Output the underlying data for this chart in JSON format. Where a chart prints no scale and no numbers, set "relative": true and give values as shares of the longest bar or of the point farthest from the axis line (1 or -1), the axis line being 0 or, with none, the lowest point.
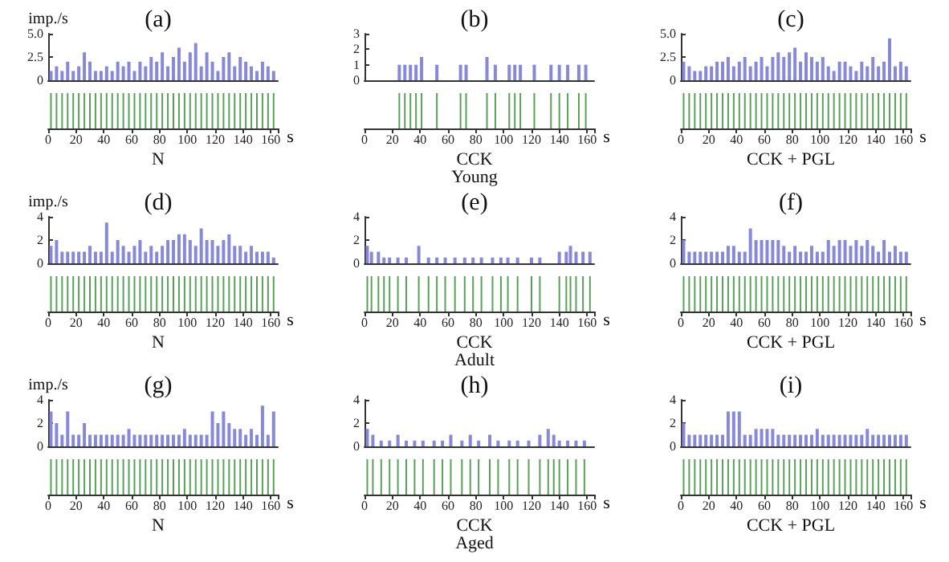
{
  "chart_data": [
    {
      "type": "bar",
      "title": "(a)",
      "ylabel": "imp./s",
      "color": "#8888d8",
      "xlim": [
        0,
        165
      ],
      "ylim": [
        0,
        5
      ],
      "yticks": [
        0,
        2.5,
        {
          "value": 5,
          "label": "5.0"
        }
      ],
      "tick_labels": "y",
      "x": [
        2,
        6,
        10,
        14,
        18,
        22,
        26,
        30,
        34,
        38,
        42,
        46,
        50,
        54,
        58,
        62,
        66,
        70,
        74,
        78,
        82,
        86,
        90,
        94,
        98,
        102,
        106,
        110,
        114,
        118,
        122,
        126,
        130,
        134,
        138,
        142,
        146,
        150,
        154,
        158,
        162
      ],
      "values": [
        1,
        1.5,
        1,
        2,
        1,
        1.5,
        3,
        2,
        1,
        1,
        1.5,
        1,
        2,
        1.5,
        2,
        1,
        2,
        1.5,
        2.5,
        2,
        3,
        1.5,
        2.5,
        3.5,
        2,
        3,
        4,
        1.5,
        3,
        2,
        1,
        2.5,
        3,
        1.5,
        2.5,
        2,
        1.5,
        1,
        2,
        1.5,
        1
      ]
    },
    {
      "type": "bar",
      "relative": true,
      "color": "#5aa05a",
      "xlabel": "s",
      "annotations": [
        "N"
      ],
      "xlim": [
        0,
        165
      ],
      "xticks": [
        0,
        20,
        40,
        60,
        80,
        100,
        120,
        140,
        160
      ],
      "x": [
        2,
        6,
        10,
        14,
        18,
        22,
        26,
        30,
        34,
        38,
        42,
        46,
        50,
        54,
        58,
        62,
        66,
        70,
        74,
        78,
        82,
        86,
        90,
        94,
        98,
        102,
        106,
        110,
        114,
        118,
        122,
        126,
        130,
        134,
        138,
        142,
        146,
        150,
        154,
        158,
        162
      ],
      "values": [
        1,
        1,
        1,
        1,
        1,
        1,
        1,
        1,
        1,
        1,
        1,
        1,
        1,
        1,
        1,
        1,
        1,
        1,
        1,
        1,
        1,
        1,
        1,
        1,
        1,
        1,
        1,
        1,
        1,
        1,
        1,
        1,
        1,
        1,
        1,
        1,
        1,
        1,
        1,
        1,
        1
      ]
    },
    {
      "type": "bar",
      "title": "(b)",
      "color": "#8888d8",
      "xlim": [
        0,
        165
      ],
      "ylim": [
        0,
        3
      ],
      "yticks": [
        0,
        1,
        2,
        3
      ],
      "tick_labels": "y",
      "x": [
        25,
        29,
        33,
        37,
        41,
        52,
        69,
        73,
        88,
        94,
        104,
        108,
        112,
        122,
        134,
        140,
        146,
        154,
        159
      ],
      "values": [
        1,
        1,
        1,
        1,
        1.5,
        1,
        1,
        1,
        1.5,
        1,
        1,
        1,
        1,
        1,
        1,
        1,
        1,
        1,
        1
      ]
    },
    {
      "type": "bar",
      "relative": true,
      "color": "#5aa05a",
      "xlabel": "s",
      "annotations": [
        "CCK",
        "Young"
      ],
      "xlim": [
        0,
        165
      ],
      "xticks": [
        0,
        20,
        40,
        60,
        80,
        100,
        120,
        140,
        160
      ],
      "x": [
        25,
        29,
        33,
        37,
        41,
        52,
        69,
        73,
        88,
        94,
        104,
        108,
        112,
        122,
        134,
        140,
        146,
        154,
        159
      ],
      "values": [
        1,
        1,
        1,
        1,
        1,
        1,
        1,
        1,
        1,
        1,
        1,
        1,
        1,
        1,
        1,
        1,
        1,
        1,
        1
      ]
    },
    {
      "type": "bar",
      "title": "(c)",
      "color": "#8888d8",
      "xlim": [
        0,
        165
      ],
      "ylim": [
        0,
        5
      ],
      "yticks": [
        0,
        2.5,
        {
          "value": 5,
          "label": "5.0"
        }
      ],
      "tick_labels": "y",
      "x": [
        2,
        6,
        10,
        14,
        18,
        22,
        26,
        30,
        34,
        38,
        42,
        46,
        50,
        54,
        58,
        62,
        66,
        70,
        74,
        78,
        82,
        86,
        90,
        94,
        98,
        102,
        106,
        110,
        114,
        118,
        122,
        126,
        130,
        134,
        138,
        142,
        146,
        150,
        154,
        158,
        162
      ],
      "values": [
        2,
        1.5,
        1,
        1,
        1.5,
        1.5,
        2,
        2,
        2.5,
        1.5,
        2,
        2.5,
        1.5,
        2,
        2.5,
        1.5,
        2.5,
        3,
        2.5,
        3,
        3.5,
        2,
        3,
        2.5,
        2,
        2.5,
        1.5,
        1,
        2,
        2,
        1.5,
        1,
        2,
        1.5,
        2.5,
        1.5,
        2,
        4.5,
        1.5,
        2,
        1.5
      ]
    },
    {
      "type": "bar",
      "relative": true,
      "color": "#5aa05a",
      "xlabel": "s",
      "annotations": [
        "CCK + PGL"
      ],
      "xlim": [
        0,
        165
      ],
      "xticks": [
        0,
        20,
        40,
        60,
        80,
        100,
        120,
        140,
        160
      ],
      "x": [
        2,
        6,
        10,
        14,
        18,
        22,
        26,
        30,
        34,
        38,
        42,
        46,
        50,
        54,
        58,
        62,
        66,
        70,
        74,
        78,
        82,
        86,
        90,
        94,
        98,
        102,
        106,
        110,
        114,
        118,
        122,
        126,
        130,
        134,
        138,
        142,
        146,
        150,
        154,
        158,
        162
      ],
      "values": [
        1,
        1,
        1,
        1,
        1,
        1,
        1,
        1,
        1,
        1,
        1,
        1,
        1,
        1,
        1,
        1,
        1,
        1,
        1,
        1,
        1,
        1,
        1,
        1,
        1,
        1,
        1,
        1,
        1,
        1,
        1,
        1,
        1,
        1,
        1,
        1,
        1,
        1,
        1,
        1,
        1
      ]
    },
    {
      "type": "bar",
      "title": "(d)",
      "ylabel": "imp./s",
      "color": "#8888d8",
      "xlim": [
        0,
        165
      ],
      "ylim": [
        0,
        4
      ],
      "yticks": [
        0,
        2,
        4
      ],
      "tick_labels": "y",
      "x": [
        2,
        6,
        10,
        14,
        18,
        22,
        26,
        30,
        34,
        38,
        42,
        46,
        50,
        54,
        58,
        62,
        66,
        70,
        74,
        78,
        82,
        86,
        90,
        94,
        98,
        102,
        106,
        110,
        114,
        118,
        122,
        126,
        130,
        134,
        138,
        142,
        146,
        150,
        154,
        158,
        162
      ],
      "values": [
        1.5,
        2,
        1,
        1,
        1,
        1,
        1,
        1.5,
        1,
        1,
        3.5,
        1,
        2,
        1.5,
        1,
        1.5,
        2,
        1,
        1.5,
        1,
        1.5,
        2,
        2,
        2.5,
        2.5,
        2,
        1.5,
        3,
        2,
        2,
        1.5,
        2,
        2.5,
        1.5,
        1.5,
        1,
        1.5,
        1,
        1,
        1,
        0.5
      ]
    },
    {
      "type": "bar",
      "relative": true,
      "color": "#5aa05a",
      "xlabel": "s",
      "annotations": [
        "N"
      ],
      "xlim": [
        0,
        165
      ],
      "xticks": [
        0,
        20,
        40,
        60,
        80,
        100,
        120,
        140,
        160
      ],
      "x": [
        2,
        6,
        10,
        14,
        18,
        22,
        26,
        30,
        34,
        38,
        42,
        46,
        50,
        54,
        58,
        62,
        66,
        70,
        74,
        78,
        82,
        86,
        90,
        94,
        98,
        102,
        106,
        110,
        114,
        118,
        122,
        126,
        130,
        134,
        138,
        142,
        146,
        150,
        154,
        158,
        162
      ],
      "values": [
        1,
        1,
        1,
        1,
        1,
        1,
        1,
        1,
        1,
        1,
        1,
        1,
        1,
        1,
        1,
        1,
        1,
        1,
        1,
        1,
        1,
        1,
        1,
        1,
        1,
        1,
        1,
        1,
        1,
        1,
        1,
        1,
        1,
        1,
        1,
        1,
        1,
        1,
        1,
        1,
        1
      ]
    },
    {
      "type": "bar",
      "title": "(e)",
      "color": "#8888d8",
      "xlim": [
        0,
        165
      ],
      "ylim": [
        0,
        4
      ],
      "yticks": [
        0,
        2,
        4
      ],
      "tick_labels": "y",
      "x": [
        2,
        5,
        10,
        14,
        18,
        24,
        30,
        39,
        46,
        52,
        58,
        65,
        72,
        78,
        84,
        92,
        98,
        103,
        110,
        120,
        126,
        140,
        145,
        148,
        152,
        157,
        162
      ],
      "values": [
        1.5,
        1,
        1,
        0.5,
        0.5,
        0.5,
        0.5,
        1.5,
        0.5,
        0.5,
        0.5,
        0.5,
        0.5,
        0.5,
        0.5,
        0.5,
        0.5,
        0.5,
        0.5,
        0.5,
        0.5,
        1,
        1,
        1.5,
        1,
        1,
        1
      ]
    },
    {
      "type": "bar",
      "relative": true,
      "color": "#5aa05a",
      "xlabel": "s",
      "annotations": [
        "CCK",
        "Adult"
      ],
      "xlim": [
        0,
        165
      ],
      "xticks": [
        0,
        20,
        40,
        60,
        80,
        100,
        120,
        140,
        160
      ],
      "x": [
        2,
        5,
        10,
        14,
        18,
        24,
        30,
        39,
        46,
        52,
        58,
        65,
        72,
        78,
        84,
        92,
        98,
        103,
        110,
        120,
        126,
        140,
        145,
        148,
        152,
        157,
        162
      ],
      "values": [
        1,
        1,
        1,
        1,
        1,
        1,
        1,
        1,
        1,
        1,
        1,
        1,
        1,
        1,
        1,
        1,
        1,
        1,
        1,
        1,
        1,
        1,
        1,
        1,
        1,
        1,
        1
      ]
    },
    {
      "type": "bar",
      "title": "(f)",
      "color": "#8888d8",
      "xlim": [
        0,
        165
      ],
      "ylim": [
        0,
        4
      ],
      "yticks": [
        0,
        2,
        4
      ],
      "tick_labels": "y",
      "x": [
        2,
        6,
        10,
        14,
        18,
        22,
        26,
        30,
        34,
        38,
        42,
        46,
        50,
        54,
        58,
        62,
        66,
        70,
        74,
        78,
        82,
        86,
        90,
        94,
        98,
        102,
        106,
        110,
        114,
        118,
        122,
        126,
        130,
        134,
        138,
        142,
        146,
        150,
        154,
        158,
        162
      ],
      "values": [
        2,
        1,
        1,
        1,
        1,
        1,
        1,
        1,
        1.5,
        1.5,
        1,
        1,
        3,
        2,
        2,
        2,
        2,
        2,
        1.5,
        1,
        1.5,
        1,
        1,
        1.5,
        1,
        1,
        2,
        1.5,
        2,
        2,
        1.5,
        2,
        1.5,
        2,
        1.5,
        1,
        2,
        1,
        1.5,
        1,
        1
      ]
    },
    {
      "type": "bar",
      "relative": true,
      "color": "#5aa05a",
      "xlabel": "s",
      "annotations": [
        "CCK + PGL"
      ],
      "xlim": [
        0,
        165
      ],
      "xticks": [
        0,
        20,
        40,
        60,
        80,
        100,
        120,
        140,
        160
      ],
      "x": [
        2,
        6,
        10,
        14,
        18,
        22,
        26,
        30,
        34,
        38,
        42,
        46,
        50,
        54,
        58,
        62,
        66,
        70,
        74,
        78,
        82,
        86,
        90,
        94,
        98,
        102,
        106,
        110,
        114,
        118,
        122,
        126,
        130,
        134,
        138,
        142,
        146,
        150,
        154,
        158,
        162
      ],
      "values": [
        1,
        1,
        1,
        1,
        1,
        1,
        1,
        1,
        1,
        1,
        1,
        1,
        1,
        1,
        1,
        1,
        1,
        1,
        1,
        1,
        1,
        1,
        1,
        1,
        1,
        1,
        1,
        1,
        1,
        1,
        1,
        1,
        1,
        1,
        1,
        1,
        1,
        1,
        1,
        1,
        1
      ]
    },
    {
      "type": "bar",
      "title": "(g)",
      "ylabel": "imp./s",
      "color": "#8888d8",
      "xlim": [
        0,
        165
      ],
      "ylim": [
        0,
        4
      ],
      "yticks": [
        0,
        2,
        4
      ],
      "tick_labels": "y",
      "x": [
        2,
        6,
        10,
        14,
        18,
        22,
        26,
        30,
        34,
        38,
        42,
        46,
        50,
        54,
        58,
        62,
        66,
        70,
        74,
        78,
        82,
        86,
        90,
        94,
        98,
        102,
        106,
        110,
        114,
        118,
        122,
        126,
        130,
        134,
        138,
        142,
        146,
        150,
        154,
        158,
        162
      ],
      "values": [
        3,
        2,
        1,
        3,
        1,
        1,
        2,
        1,
        1,
        1,
        1,
        1,
        1,
        1,
        1.5,
        1,
        1,
        1,
        1,
        1,
        1,
        1,
        1,
        1,
        1.5,
        1,
        1,
        1,
        1,
        3,
        2,
        3,
        2,
        1.5,
        1.5,
        1,
        1.5,
        1,
        3.5,
        1,
        3
      ]
    },
    {
      "type": "bar",
      "relative": true,
      "color": "#5aa05a",
      "xlabel": "s",
      "annotations": [
        "N"
      ],
      "xlim": [
        0,
        165
      ],
      "xticks": [
        0,
        20,
        40,
        60,
        80,
        100,
        120,
        140,
        160
      ],
      "x": [
        2,
        6,
        10,
        14,
        18,
        22,
        26,
        30,
        34,
        38,
        42,
        46,
        50,
        54,
        58,
        62,
        66,
        70,
        74,
        78,
        82,
        86,
        90,
        94,
        98,
        102,
        106,
        110,
        114,
        118,
        122,
        126,
        130,
        134,
        138,
        142,
        146,
        150,
        154,
        158,
        162
      ],
      "values": [
        1,
        1,
        1,
        1,
        1,
        1,
        1,
        1,
        1,
        1,
        1,
        1,
        1,
        1,
        1,
        1,
        1,
        1,
        1,
        1,
        1,
        1,
        1,
        1,
        1,
        1,
        1,
        1,
        1,
        1,
        1,
        1,
        1,
        1,
        1,
        1,
        1,
        1,
        1,
        1,
        1
      ]
    },
    {
      "type": "bar",
      "title": "(h)",
      "color": "#8888d8",
      "xlim": [
        0,
        165
      ],
      "ylim": [
        0,
        4
      ],
      "yticks": [
        0,
        2,
        4
      ],
      "tick_labels": "y",
      "x": [
        2,
        6,
        12,
        18,
        24,
        30,
        36,
        42,
        50,
        56,
        62,
        70,
        76,
        82,
        90,
        96,
        104,
        110,
        118,
        126,
        132,
        136,
        140,
        146,
        152,
        158
      ],
      "values": [
        1.5,
        1,
        0.5,
        0.5,
        1,
        0.5,
        0.5,
        0.5,
        0.5,
        0.5,
        1,
        0.5,
        1,
        0.5,
        1,
        0.5,
        0.5,
        0.5,
        0.5,
        1,
        1.5,
        1,
        0.5,
        0.5,
        0.5,
        0.5
      ]
    },
    {
      "type": "bar",
      "relative": true,
      "color": "#5aa05a",
      "xlabel": "s",
      "annotations": [
        "CCK",
        "Aged"
      ],
      "xlim": [
        0,
        165
      ],
      "xticks": [
        0,
        20,
        40,
        60,
        80,
        100,
        120,
        140,
        160
      ],
      "x": [
        2,
        6,
        12,
        18,
        24,
        30,
        36,
        42,
        50,
        56,
        62,
        70,
        76,
        82,
        90,
        96,
        104,
        110,
        118,
        126,
        132,
        136,
        140,
        146,
        152,
        158
      ],
      "values": [
        1,
        1,
        1,
        1,
        1,
        1,
        1,
        1,
        1,
        1,
        1,
        1,
        1,
        1,
        1,
        1,
        1,
        1,
        1,
        1,
        1,
        1,
        1,
        1,
        1,
        1
      ]
    },
    {
      "type": "bar",
      "title": "(i)",
      "color": "#8888d8",
      "xlim": [
        0,
        165
      ],
      "ylim": [
        0,
        4
      ],
      "yticks": [
        0,
        2,
        4
      ],
      "tick_labels": "y",
      "x": [
        2,
        6,
        10,
        14,
        18,
        22,
        26,
        30,
        34,
        38,
        42,
        46,
        50,
        54,
        58,
        62,
        66,
        70,
        74,
        78,
        82,
        86,
        90,
        94,
        98,
        102,
        106,
        110,
        114,
        118,
        122,
        126,
        130,
        134,
        138,
        142,
        146,
        150,
        154,
        158,
        162
      ],
      "values": [
        2,
        1,
        1,
        1,
        1,
        1,
        1,
        1,
        3,
        3,
        3,
        1,
        1,
        1.5,
        1.5,
        1.5,
        1.5,
        1,
        1,
        1,
        1,
        1,
        1,
        1,
        1.5,
        1,
        1,
        1,
        1,
        1,
        1,
        1,
        1,
        1.5,
        1,
        1,
        1,
        1,
        1,
        1,
        1
      ]
    },
    {
      "type": "bar",
      "relative": true,
      "color": "#5aa05a",
      "xlabel": "s",
      "annotations": [
        "CCK + PGL"
      ],
      "xlim": [
        0,
        165
      ],
      "xticks": [
        0,
        20,
        40,
        60,
        80,
        100,
        120,
        140,
        160
      ],
      "x": [
        2,
        6,
        10,
        14,
        18,
        22,
        26,
        30,
        34,
        38,
        42,
        46,
        50,
        54,
        58,
        62,
        66,
        70,
        74,
        78,
        82,
        86,
        90,
        94,
        98,
        102,
        106,
        110,
        114,
        118,
        122,
        126,
        130,
        134,
        138,
        142,
        146,
        150,
        154,
        158,
        162
      ],
      "values": [
        1,
        1,
        1,
        1,
        1,
        1,
        1,
        1,
        1,
        1,
        1,
        1,
        1,
        1,
        1,
        1,
        1,
        1,
        1,
        1,
        1,
        1,
        1,
        1,
        1,
        1,
        1,
        1,
        1,
        1,
        1,
        1,
        1,
        1,
        1,
        1,
        1,
        1,
        1,
        1,
        1
      ]
    }
  ]
}
